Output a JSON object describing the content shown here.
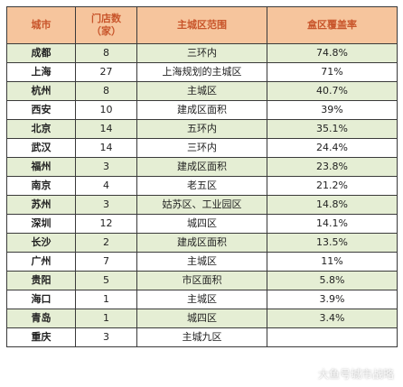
{
  "headers": {
    "city": "城市",
    "stores_line1": "门店数",
    "stores_line2": "（家）",
    "range": "主城区范围",
    "coverage": "盒区覆盖率"
  },
  "rows": [
    {
      "city": "成都",
      "stores": "8",
      "range": "三环内",
      "coverage": "74.8%"
    },
    {
      "city": "上海",
      "stores": "27",
      "range": "上海规划的主城区",
      "coverage": "71%"
    },
    {
      "city": "杭州",
      "stores": "8",
      "range": "主城区",
      "coverage": "40.7%"
    },
    {
      "city": "西安",
      "stores": "10",
      "range": "建成区面积",
      "coverage": "39%"
    },
    {
      "city": "北京",
      "stores": "14",
      "range": "五环内",
      "coverage": "35.1%"
    },
    {
      "city": "武汉",
      "stores": "14",
      "range": "三环内",
      "coverage": "24.4%"
    },
    {
      "city": "福州",
      "stores": "3",
      "range": "建成区面积",
      "coverage": "23.8%"
    },
    {
      "city": "南京",
      "stores": "4",
      "range": "老五区",
      "coverage": "21.2%"
    },
    {
      "city": "苏州",
      "stores": "3",
      "range": "姑苏区、工业园区",
      "coverage": "14.8%"
    },
    {
      "city": "深圳",
      "stores": "12",
      "range": "城四区",
      "coverage": "14.1%"
    },
    {
      "city": "长沙",
      "stores": "2",
      "range": "建成区面积",
      "coverage": "13.5%"
    },
    {
      "city": "广州",
      "stores": "7",
      "range": "主城区",
      "coverage": "11%"
    },
    {
      "city": "贵阳",
      "stores": "5",
      "range": "市区面积",
      "coverage": "5.8%"
    },
    {
      "city": "海口",
      "stores": "1",
      "range": "主城区",
      "coverage": "3.9%"
    },
    {
      "city": "青岛",
      "stores": "1",
      "range": "城四区",
      "coverage": "3.4%"
    },
    {
      "city": "重庆",
      "stores": "3",
      "range": "主城九区",
      "coverage": ""
    }
  ],
  "watermark": "大鱼号城市战略",
  "colors": {
    "header_bg": "#f6c59d",
    "header_text": "#c8552b",
    "row_shade": "#e5eed4",
    "border": "#3a3a3a"
  }
}
